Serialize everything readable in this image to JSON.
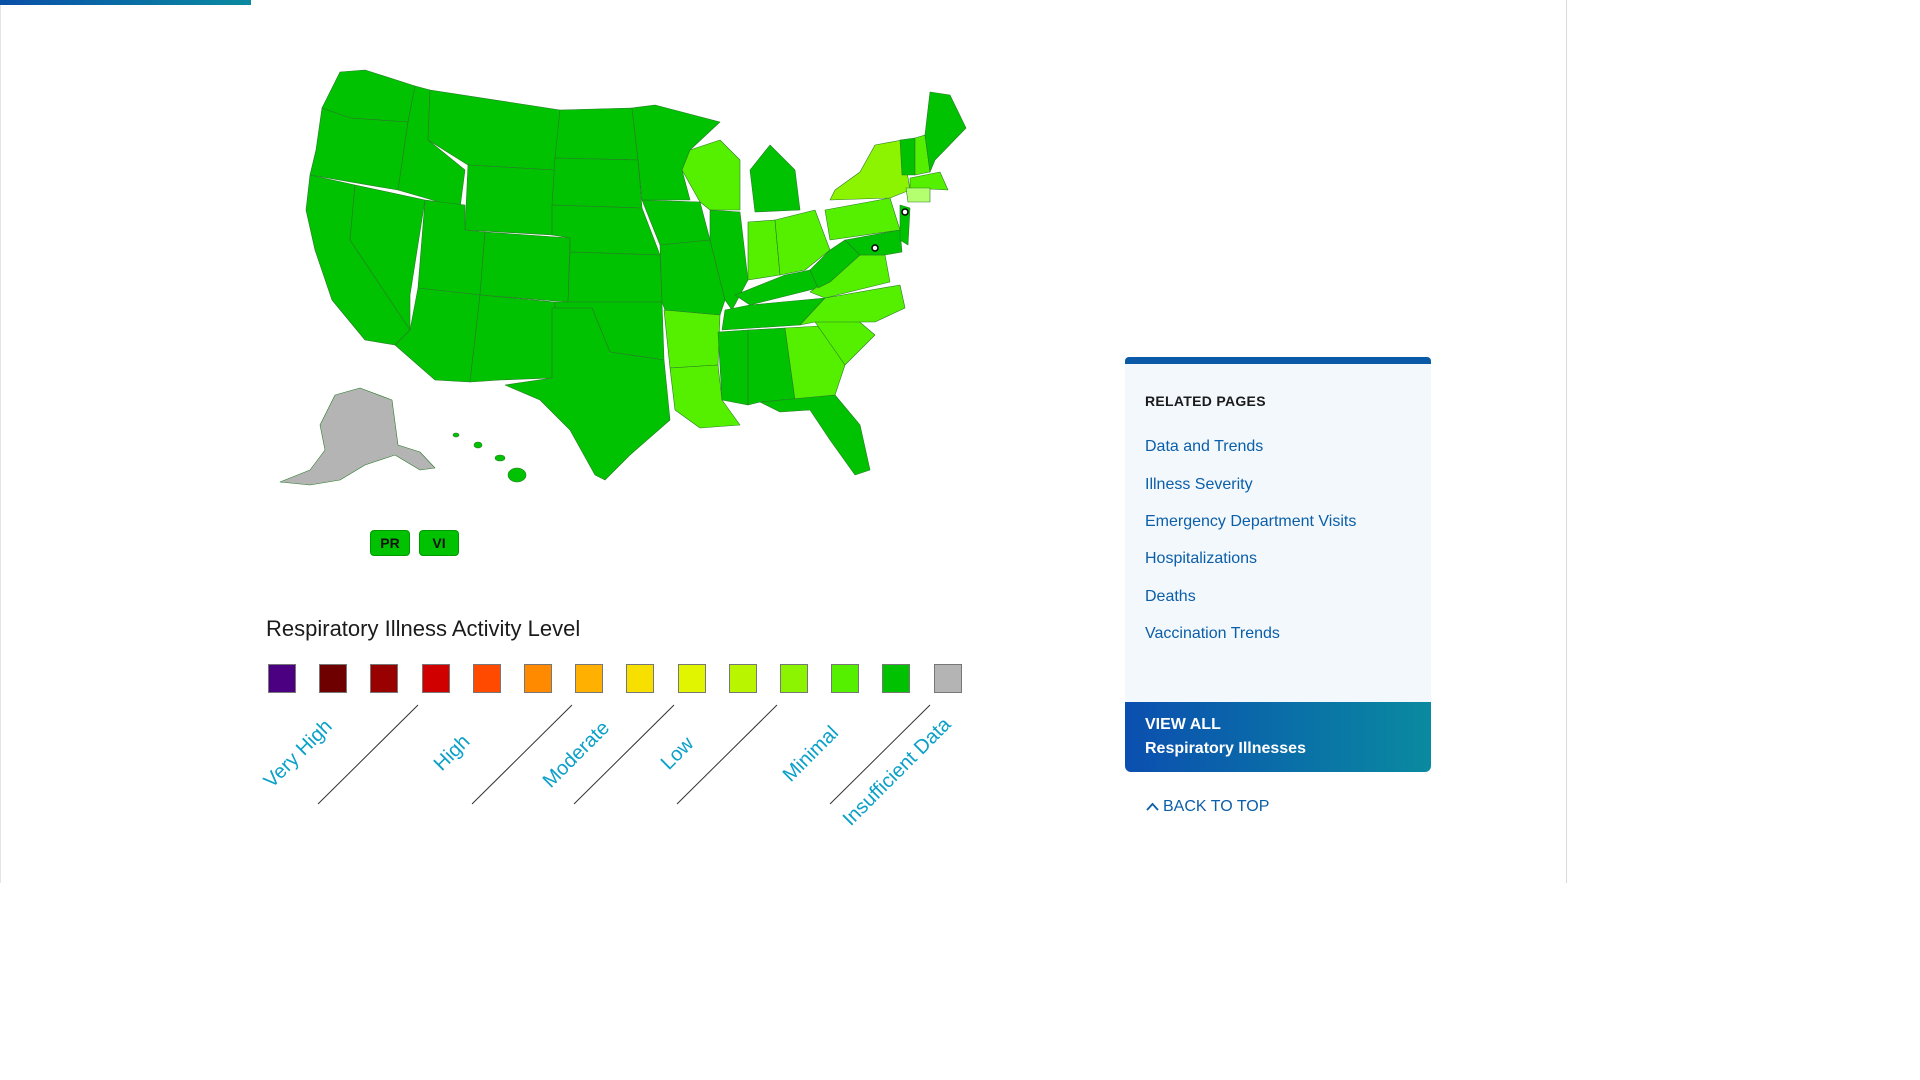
{
  "map": {
    "territories": [
      "PR",
      "VI"
    ],
    "colors": {
      "minimal_dark": "#00c200",
      "minimal_light": "#55f000",
      "low_light": "#8cf400",
      "insufficient": "#b4b4b4"
    }
  },
  "legend": {
    "title": "Respiratory Illness Activity Level",
    "swatches": [
      "#4b0082",
      "#6e0000",
      "#990000",
      "#d10000",
      "#ff4a00",
      "#ff8a00",
      "#ffb000",
      "#f7e000",
      "#e2f500",
      "#baf500",
      "#8cf400",
      "#55f000",
      "#00c200",
      "#b4b4b4"
    ],
    "labels": [
      "Very High",
      "High",
      "Moderate",
      "Low",
      "Minimal",
      "Insufficient Data"
    ]
  },
  "sidebar": {
    "heading": "RELATED PAGES",
    "links": [
      "Data and Trends",
      "Illness Severity",
      "Emergency Department Visits",
      "Hospitalizations",
      "Deaths",
      "Vaccination Trends"
    ],
    "view_all_line1": "VIEW ALL",
    "view_all_line2": "Respiratory Illnesses",
    "back_to_top": "BACK TO TOP"
  }
}
